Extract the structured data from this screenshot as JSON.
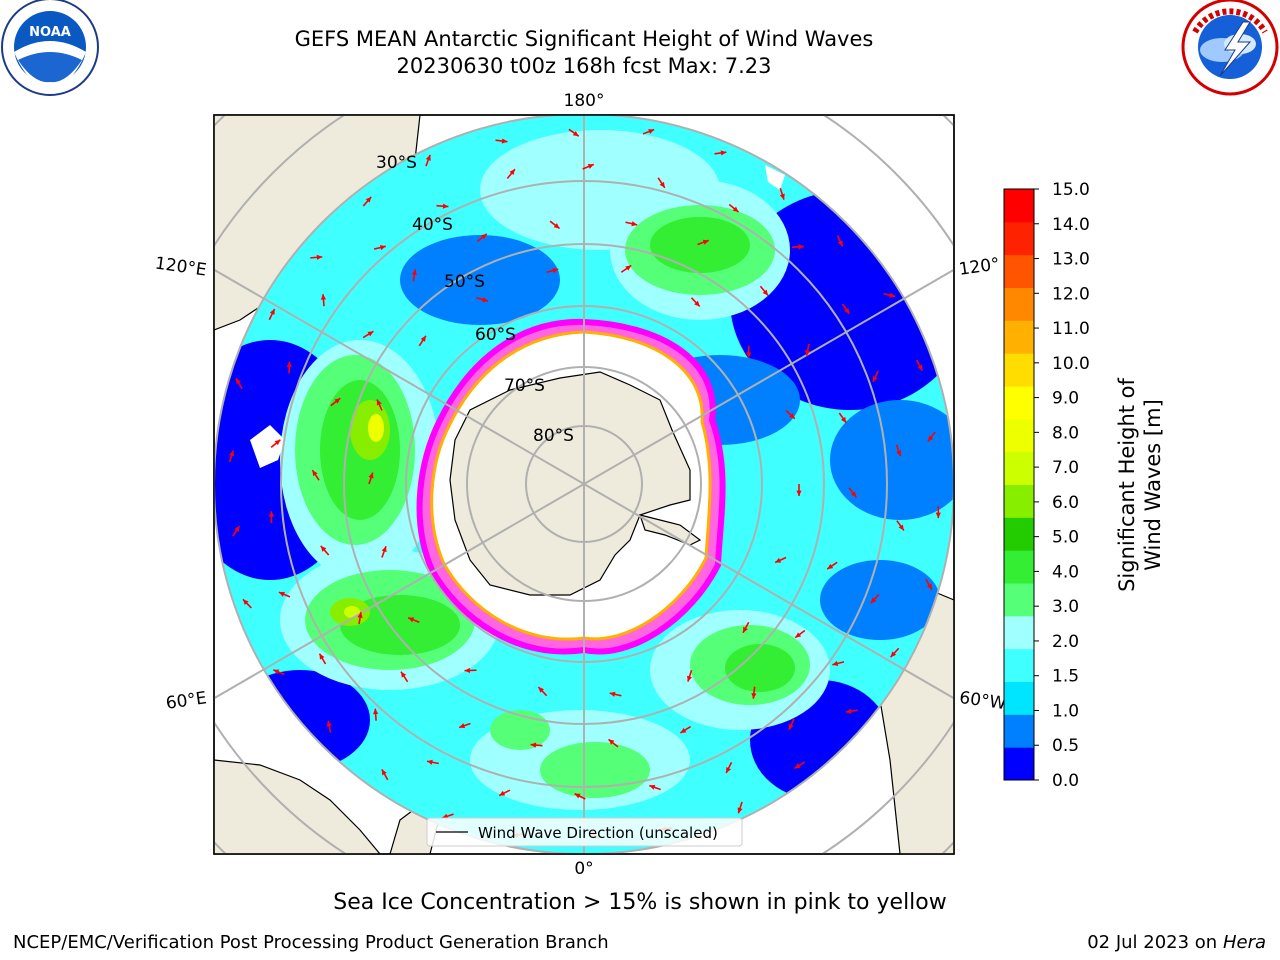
{
  "header": {
    "title_line1": "GEFS MEAN Antarctic Significant Height of Wind Waves",
    "title_line2": "20230630 t00z 168h fcst   Max: 7.23"
  },
  "logos": {
    "left": "NOAA",
    "left_ring_text": "NATIONAL OCEANIC AND ATMOSPHERIC ADMINISTRATION · U.S. DEPARTMENT OF COMMERCE",
    "right_ring_text": "NATIONAL WEATHER SERVICE"
  },
  "map": {
    "projection": "south-polar-stereographic",
    "lon_labels": {
      "top": "180°",
      "bottom": "0°",
      "left_upper": "120°E",
      "left_lower": "60°E",
      "right_upper": "120°",
      "right_lower": "60°W"
    },
    "lat_labels": [
      "30°S",
      "40°S",
      "50°S",
      "60°S",
      "70°S",
      "80°S"
    ],
    "legend_label": "Wind Wave Direction (unscaled)",
    "colors": {
      "land": "#efebdc",
      "ice_free_ocean_shade": "#00ffff",
      "arrow": "#ff0000",
      "ice_edge": "#ff00ff"
    }
  },
  "colorbar": {
    "label": "Significant Height of Wind Waves [m]",
    "ticks": [
      "0.0",
      "0.5",
      "1.0",
      "1.5",
      "2.0",
      "3.0",
      "4.0",
      "5.0",
      "6.0",
      "7.0",
      "8.0",
      "9.0",
      "10.0",
      "11.0",
      "12.0",
      "13.0",
      "14.0",
      "15.0"
    ],
    "colors": [
      "#0000ff",
      "#0080ff",
      "#00e5ff",
      "#40ffff",
      "#a0ffff",
      "#55ff77",
      "#33ee33",
      "#22cc00",
      "#88ee00",
      "#ccff00",
      "#eeff00",
      "#ffff00",
      "#ffdd00",
      "#ffb000",
      "#ff8800",
      "#ff5500",
      "#ff2200",
      "#ff0000"
    ]
  },
  "footer": {
    "note": "Sea Ice Concentration > 15% is shown in pink to yellow",
    "credit_left": "NCEP/EMC/Verification Post Processing Product Generation Branch",
    "credit_right_date": "02 Jul 2023 on ",
    "credit_right_host": "Hera"
  }
}
